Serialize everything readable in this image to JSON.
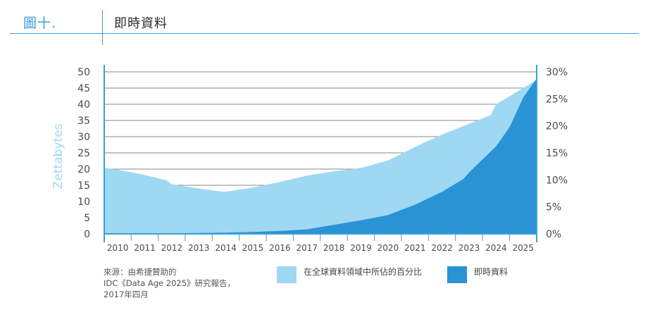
{
  "header": {
    "figure_label": "圖十.",
    "title": "即時資料"
  },
  "source": {
    "lines": [
      "來源：由希捷贊助的",
      "IDC《Data Age 2025》研究報告，",
      "2017年四月"
    ]
  },
  "colors": {
    "global_share": "#9fd8f3",
    "realtime": "#2a93d5",
    "axis": "#3aa0d8",
    "grid": "#8a8a8a"
  },
  "chart_data": {
    "type": "area",
    "ylabel": "Zettabytes",
    "ylim": [
      0,
      50
    ],
    "yticks": [
      "0",
      "5",
      "10",
      "15",
      "20",
      "25",
      "30",
      "35",
      "40",
      "45",
      "50"
    ],
    "y2lim": [
      0,
      30
    ],
    "y2ticks": [
      "0%",
      "5%",
      "10%",
      "15%",
      "20%",
      "25%",
      "30%"
    ],
    "xlim": [
      2009.5,
      2025.5
    ],
    "xticks": [
      "2010",
      "2011",
      "2012",
      "2013",
      "2014",
      "2015",
      "2016",
      "2017",
      "2018",
      "2019",
      "2020",
      "2021",
      "2022",
      "2023",
      "2024",
      "2025"
    ],
    "grid": true,
    "legend_position": "bottom",
    "series": [
      {
        "name": "在全球資料領域中所佔的百分比",
        "axis": "right",
        "x": [
          2009.5,
          2010,
          2011,
          2011.8,
          2012,
          2013,
          2013.9,
          2014,
          2015,
          2016,
          2017,
          2018,
          2019,
          2020,
          2021,
          2022,
          2023,
          2023.8,
          2024,
          2025,
          2025.5
        ],
        "values": [
          12.2,
          11.9,
          10.9,
          9.9,
          9.2,
          8.4,
          7.8,
          7.8,
          8.6,
          9.6,
          10.8,
          11.6,
          12.2,
          13.6,
          16.1,
          18.4,
          20.4,
          22,
          24,
          27,
          28.5
        ]
      },
      {
        "name": "即時資料",
        "axis": "left",
        "x": [
          2009.5,
          2012,
          2014,
          2015,
          2016,
          2017,
          2018,
          2019,
          2020,
          2021,
          2022,
          2022.8,
          2023,
          2024,
          2024.5,
          2025,
          2025.5
        ],
        "values": [
          0.1,
          0.2,
          0.4,
          0.6,
          0.9,
          1.4,
          2.8,
          4.2,
          5.8,
          9.0,
          13.0,
          17.0,
          19.0,
          27.0,
          33.0,
          42.0,
          48.0
        ]
      }
    ]
  }
}
